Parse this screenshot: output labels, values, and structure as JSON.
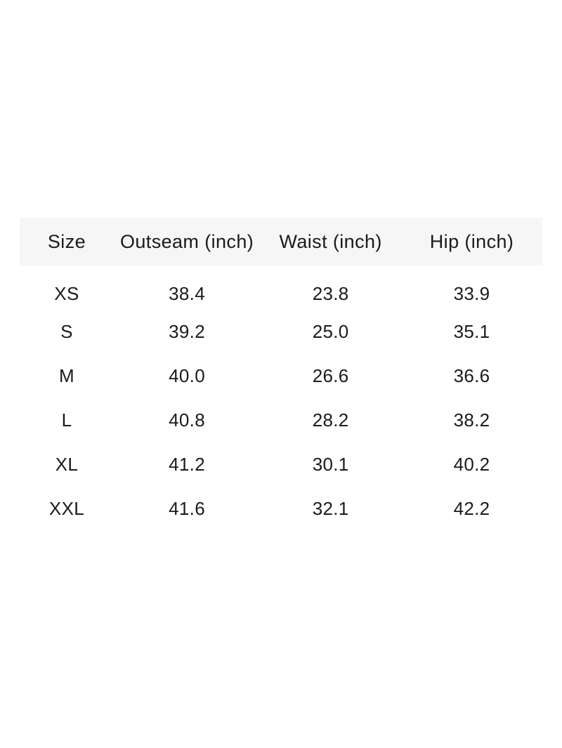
{
  "page": {
    "background_color": "#ffffff",
    "text_color": "#1b1b1b"
  },
  "size_chart": {
    "header_background_color": "#f6f6f7",
    "headers": [
      "Size",
      "Outseam (inch)",
      "Waist (inch)",
      "Hip (inch)"
    ],
    "rows": [
      [
        "XS",
        "38.4",
        "23.8",
        "33.9"
      ],
      [
        "S",
        "39.2",
        "25.0",
        "35.1"
      ],
      [
        "M",
        "40.0",
        "26.6",
        "36.6"
      ],
      [
        "L",
        "40.8",
        "28.2",
        "38.2"
      ],
      [
        "XL",
        "41.2",
        "30.1",
        "40.2"
      ],
      [
        "XXL",
        "41.6",
        "32.1",
        "42.2"
      ]
    ]
  },
  "chart_data": {
    "type": "table",
    "columns": [
      "Size",
      "Outseam (inch)",
      "Waist (inch)",
      "Hip (inch)"
    ],
    "categories": [
      "XS",
      "S",
      "M",
      "L",
      "XL",
      "XXL"
    ],
    "series": [
      {
        "name": "Outseam (inch)",
        "values": [
          38.4,
          39.2,
          40.0,
          40.8,
          41.2,
          41.6
        ]
      },
      {
        "name": "Waist (inch)",
        "values": [
          23.8,
          25.0,
          26.6,
          28.2,
          30.1,
          32.1
        ]
      },
      {
        "name": "Hip (inch)",
        "values": [
          33.9,
          35.1,
          36.6,
          38.2,
          40.2,
          42.2
        ]
      }
    ],
    "layout": {
      "grid": false,
      "borders": false,
      "header_band": true
    }
  }
}
